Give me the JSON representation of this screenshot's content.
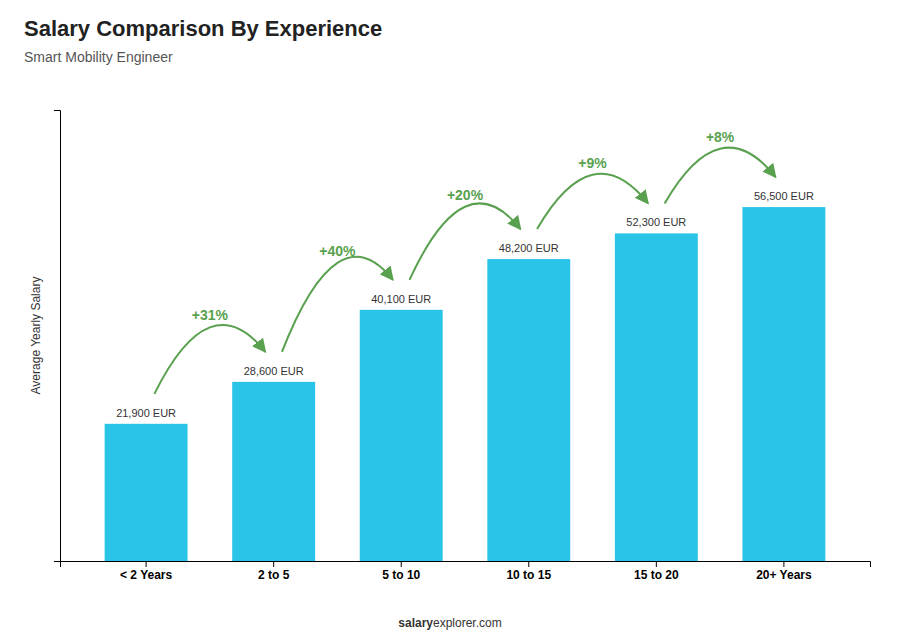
{
  "chart_data": {
    "type": "bar",
    "title": "Salary Comparison By Experience",
    "subtitle": "Smart Mobility Engineer",
    "ylabel": "Average Yearly Salary",
    "categories": [
      "< 2 Years",
      "2 to 5",
      "5 to 10",
      "10 to 15",
      "15 to 20",
      "20+ Years"
    ],
    "values": [
      21900,
      28600,
      40100,
      48200,
      52300,
      56500
    ],
    "value_labels": [
      "21,900 EUR",
      "28,600 EUR",
      "40,100 EUR",
      "48,200 EUR",
      "52,300 EUR",
      "56,500 EUR"
    ],
    "data_labels": true,
    "annotations": [
      null,
      "+31%",
      "+40%",
      "+20%",
      "+9%",
      "+8%"
    ],
    "color": "#29C4E8",
    "ylim": [
      0,
      72000
    ],
    "grid": false,
    "tick_labels": "x",
    "footer": [
      "salary",
      "explorer.com"
    ]
  }
}
